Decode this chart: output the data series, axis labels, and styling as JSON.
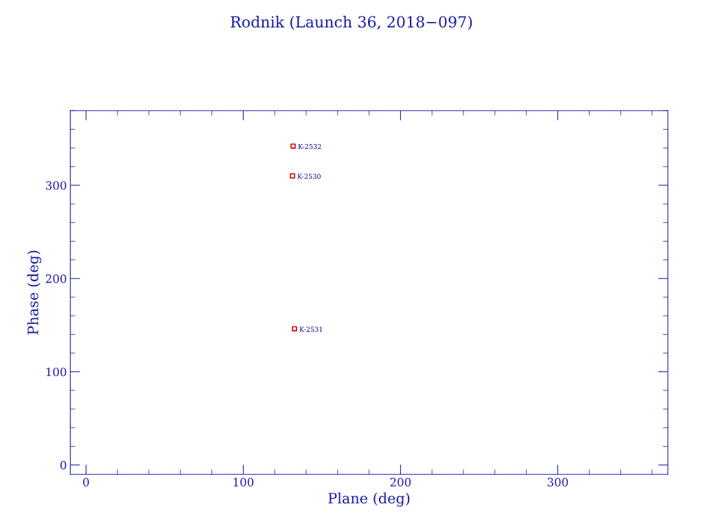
{
  "chart_data": {
    "type": "scatter",
    "title": "Rodnik (Launch 36, 2018−097)",
    "xlabel": "Plane (deg)",
    "ylabel": "Phase (deg)",
    "x": [
      131.7,
      131.3,
      132.6
    ],
    "series": [
      {
        "color": "#dd0000",
        "values": [
          342,
          310,
          146
        ]
      }
    ],
    "marker": "square",
    "grid": false,
    "legend": false,
    "xlim": [
      -10,
      370
    ],
    "ylim": [
      -10,
      380
    ],
    "xticks": [
      0,
      100,
      200,
      300
    ],
    "yticks": [
      0,
      100,
      200,
      300
    ],
    "annotations": [
      {
        "text": "K-2532",
        "x": 131.7,
        "y": 342
      },
      {
        "text": "K-2530",
        "x": 131.3,
        "y": 310
      },
      {
        "text": "K-2531",
        "x": 132.6,
        "y": 146
      }
    ]
  }
}
